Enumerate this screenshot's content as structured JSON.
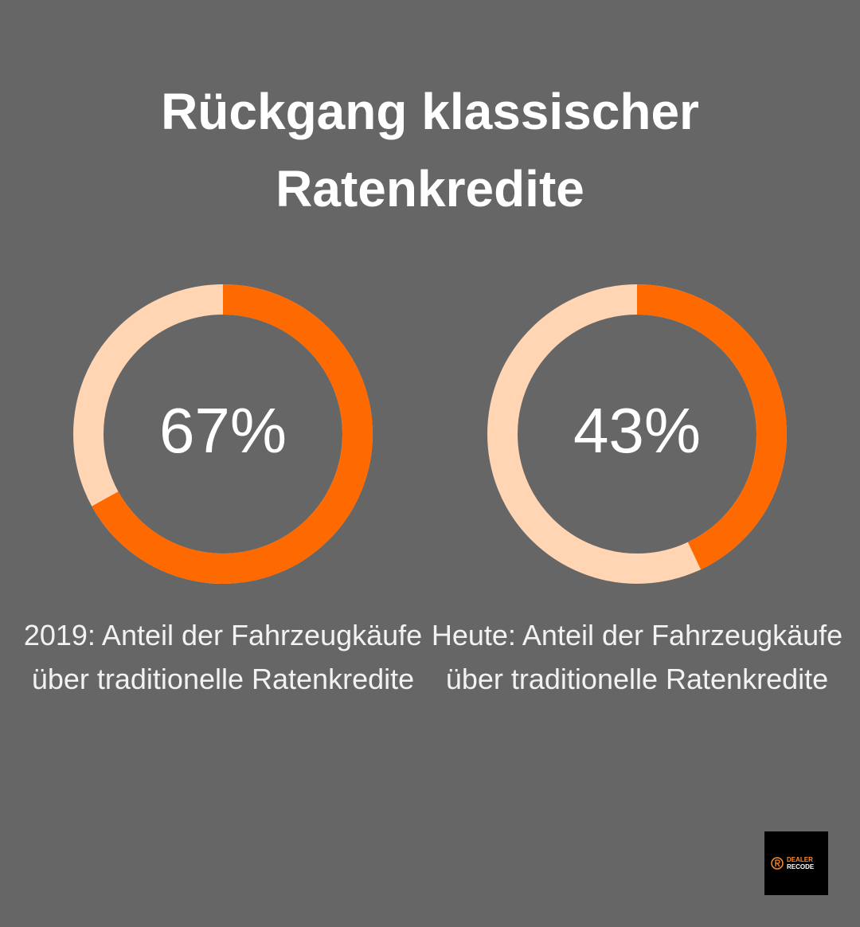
{
  "title": "Rückgang klassischer Ratenkredite",
  "chart_data": [
    {
      "type": "donut",
      "values": [
        67
      ],
      "value_labels": [
        "67%"
      ],
      "caption": "2019: Anteil der Fahrzeugkäufe über traditionelle Ratenkredite",
      "color": "#ff6a00",
      "track_color": "#ffd5b3"
    },
    {
      "type": "donut",
      "values": [
        43
      ],
      "value_labels": [
        "43%"
      ],
      "caption": "Heute: Anteil der Fahrzeugkäufe über traditionelle Ratenkredite",
      "color": "#ff6a00",
      "track_color": "#ffd5b3"
    }
  ],
  "logo": {
    "line1": "DEALER",
    "line2": "RECODE"
  }
}
